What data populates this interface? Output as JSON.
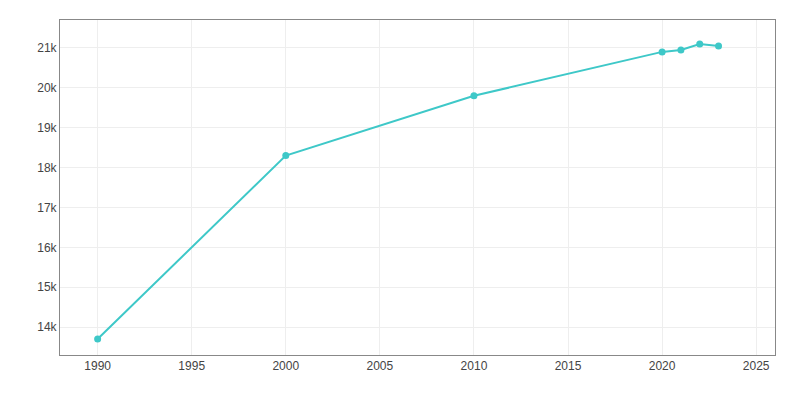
{
  "chart_data": {
    "type": "line",
    "x": [
      1990,
      2000,
      2010,
      2020,
      2021,
      2022,
      2023
    ],
    "values": [
      13700,
      18300,
      19800,
      20900,
      20950,
      21100,
      21050
    ],
    "color": "#3ec8c8",
    "marker": "circle",
    "line_style": "solid",
    "xlim": [
      1988,
      2026
    ],
    "ylim": [
      13300,
      21700
    ],
    "xticks": [
      1990,
      1995,
      2000,
      2005,
      2010,
      2015,
      2020,
      2025
    ],
    "yticks": [
      {
        "value": 14000,
        "label": "14k"
      },
      {
        "value": 15000,
        "label": "15k"
      },
      {
        "value": 16000,
        "label": "16k"
      },
      {
        "value": 17000,
        "label": "17k"
      },
      {
        "value": 18000,
        "label": "18k"
      },
      {
        "value": 19000,
        "label": "19k"
      },
      {
        "value": 20000,
        "label": "20k"
      },
      {
        "value": 21000,
        "label": "21k"
      }
    ],
    "grid": true
  }
}
